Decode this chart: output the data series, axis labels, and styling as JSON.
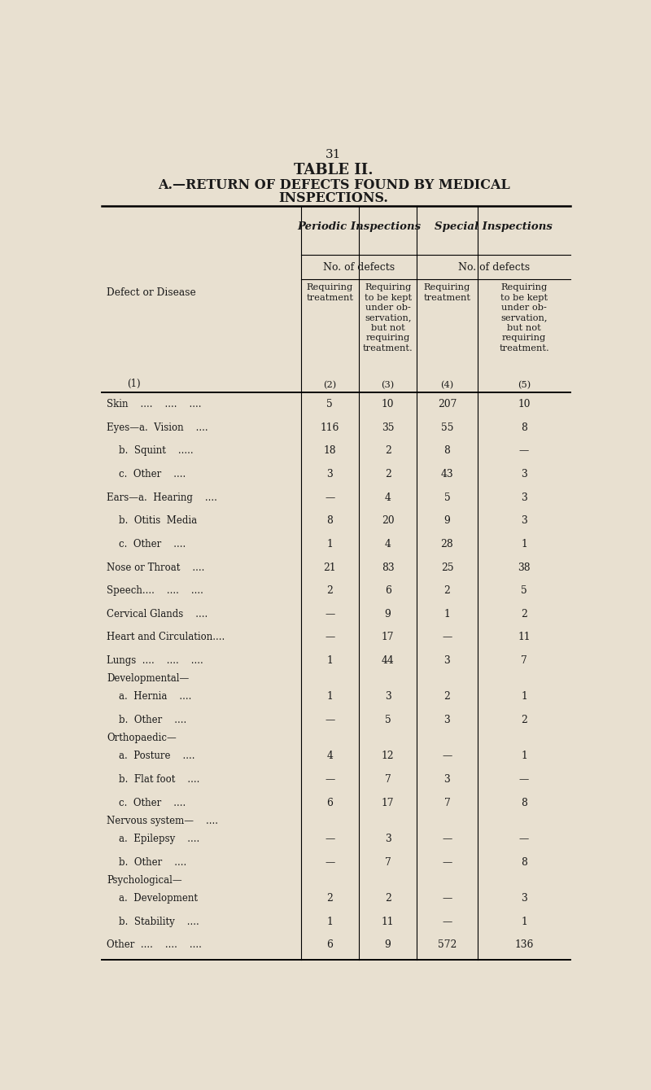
{
  "page_number": "31",
  "title": "TABLE II.",
  "subtitle_line1": "A.—RETURN OF DEFECTS FOUND BY MEDICAL",
  "subtitle_line2": "INSPECTIONS.",
  "bg_color": "#e8e0d0",
  "text_color": "#1a1a1a",
  "header1": "Periodic Inspections",
  "header2": "Special Inspections",
  "subheader": "No. of defects",
  "col_headers": [
    "Requiring\ntreatment",
    "Requiring\nto be kept\nunder ob-\nservation,\nbut not\nrequiring\ntreatment.",
    "Requiring\ntreatment",
    "Requiring\nto be kept\nunder ob-\nservation,\nbut not\nrequiring\ntreatment."
  ],
  "col_numbers": [
    "(2)",
    "(3)",
    "(4)",
    "(5)"
  ],
  "defect_label": "Defect or Disease",
  "col1_label": "(1)",
  "rows": [
    {
      "label": "Skin    ....    ....    ....",
      "indent": 0,
      "vals": [
        "5",
        "10",
        "207",
        "10"
      ]
    },
    {
      "label": "Eyes—a.  Vision    ....",
      "indent": 0,
      "vals": [
        "116",
        "35",
        "55",
        "8"
      ]
    },
    {
      "label": "    b.  Squint    .....",
      "indent": 0,
      "vals": [
        "18",
        "2",
        "8",
        "—"
      ]
    },
    {
      "label": "    c.  Other    ....",
      "indent": 0,
      "vals": [
        "3",
        "2",
        "43",
        "3"
      ]
    },
    {
      "label": "Ears—a.  Hearing    ....",
      "indent": 0,
      "vals": [
        "—",
        "4",
        "5",
        "3"
      ]
    },
    {
      "label": "    b.  Otitis  Media",
      "indent": 0,
      "vals": [
        "8",
        "20",
        "9",
        "3"
      ]
    },
    {
      "label": "    c.  Other    ....",
      "indent": 0,
      "vals": [
        "1",
        "4",
        "28",
        "1"
      ]
    },
    {
      "label": "Nose or Throat    ....",
      "indent": 0,
      "vals": [
        "21",
        "83",
        "25",
        "38"
      ]
    },
    {
      "label": "Speech....    ....    ....",
      "indent": 0,
      "vals": [
        "2",
        "6",
        "2",
        "5"
      ]
    },
    {
      "label": "Cervical Glands    ....",
      "indent": 0,
      "vals": [
        "—",
        "9",
        "1",
        "2"
      ]
    },
    {
      "label": "Heart and Circulation....",
      "indent": 0,
      "vals": [
        "—",
        "17",
        "—",
        "11"
      ]
    },
    {
      "label": "Lungs  ....    ....    ....",
      "indent": 0,
      "vals": [
        "1",
        "44",
        "3",
        "7"
      ]
    },
    {
      "label": "Developmental—",
      "indent": 0,
      "vals": [
        "",
        "",
        "",
        ""
      ],
      "group": true
    },
    {
      "label": "    a.  Hernia    ....",
      "indent": 0,
      "vals": [
        "1",
        "3",
        "2",
        "1"
      ]
    },
    {
      "label": "    b.  Other    ....",
      "indent": 0,
      "vals": [
        "—",
        "5",
        "3",
        "2"
      ]
    },
    {
      "label": "Orthopaedic—",
      "indent": 0,
      "vals": [
        "",
        "",
        "",
        ""
      ],
      "group": true
    },
    {
      "label": "    a.  Posture    ....",
      "indent": 0,
      "vals": [
        "4",
        "12",
        "—",
        "1"
      ]
    },
    {
      "label": "    b.  Flat foot    ....",
      "indent": 0,
      "vals": [
        "—",
        "7",
        "3",
        "—"
      ]
    },
    {
      "label": "    c.  Other    ....",
      "indent": 0,
      "vals": [
        "6",
        "17",
        "7",
        "8"
      ]
    },
    {
      "label": "Nervous system—    ....",
      "indent": 0,
      "vals": [
        "",
        "",
        "",
        ""
      ],
      "group": true
    },
    {
      "label": "    a.  Epilepsy    ....",
      "indent": 0,
      "vals": [
        "—",
        "3",
        "—",
        "—"
      ]
    },
    {
      "label": "    b.  Other    ....",
      "indent": 0,
      "vals": [
        "—",
        "7",
        "—",
        "8"
      ]
    },
    {
      "label": "Psychological—",
      "indent": 0,
      "vals": [
        "",
        "",
        "",
        ""
      ],
      "group": true
    },
    {
      "label": "    a.  Development",
      "indent": 0,
      "vals": [
        "2",
        "2",
        "—",
        "3"
      ]
    },
    {
      "label": "    b.  Stability    ....",
      "indent": 0,
      "vals": [
        "1",
        "11",
        "—",
        "1"
      ]
    },
    {
      "label": "Other  ....    ....    ....",
      "indent": 0,
      "vals": [
        "6",
        "9",
        "572",
        "136"
      ]
    }
  ]
}
